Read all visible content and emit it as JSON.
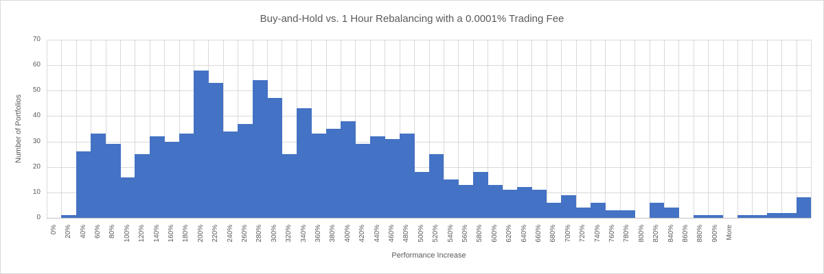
{
  "chart_data": {
    "type": "bar",
    "title": "Buy-and-Hold vs. 1 Hour Rebalancing with a 0.0001% Trading Fee",
    "xlabel": "Performance Increase",
    "ylabel": "Number of Portfolios",
    "ylim": [
      0,
      70
    ],
    "yticks": [
      0,
      10,
      20,
      30,
      40,
      50,
      60,
      70
    ],
    "grid": "horizontal-and-vertical",
    "legend": "none",
    "bar_gap_percent": 0,
    "categories": [
      "0%",
      "20%",
      "40%",
      "60%",
      "80%",
      "100%",
      "120%",
      "140%",
      "160%",
      "180%",
      "200%",
      "220%",
      "240%",
      "260%",
      "280%",
      "300%",
      "320%",
      "340%",
      "360%",
      "380%",
      "400%",
      "420%",
      "440%",
      "460%",
      "480%",
      "500%",
      "520%",
      "540%",
      "560%",
      "580%",
      "600%",
      "620%",
      "640%",
      "660%",
      "680%",
      "700%",
      "720%",
      "740%",
      "760%",
      "780%",
      "800%",
      "820%",
      "840%",
      "860%",
      "880%",
      "900%",
      "More",
      "",
      "",
      "",
      "",
      ""
    ],
    "values": [
      0,
      1,
      26,
      33,
      29,
      16,
      25,
      32,
      30,
      33,
      58,
      53,
      34,
      37,
      54,
      47,
      25,
      43,
      33,
      35,
      38,
      29,
      32,
      31,
      33,
      18,
      25,
      15,
      13,
      18,
      13,
      11,
      12,
      11,
      6,
      9,
      4,
      6,
      3,
      3,
      0,
      6,
      4,
      0,
      1,
      1,
      0,
      1,
      1,
      2,
      2,
      8
    ],
    "colors": {
      "bar": "#4472C4",
      "gridline": "#D9D9D9",
      "axis_line": "#BFBFBF",
      "text": "#595959",
      "background": "#FFFFFF",
      "border": "#D9D9D9"
    }
  }
}
